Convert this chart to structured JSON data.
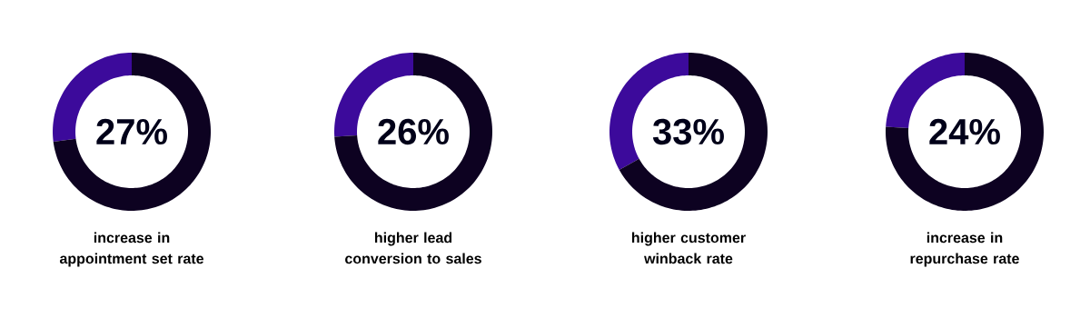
{
  "chart_data": [
    {
      "type": "donut",
      "title": "increase in appointment set rate",
      "categories": [
        null,
        null
      ],
      "values": [
        27,
        73
      ],
      "colors": [
        "#3c0a9b",
        "#0d0221"
      ],
      "annotations": [
        "27%"
      ]
    },
    {
      "type": "donut",
      "title": "higher lead conversion to sales",
      "categories": [
        null,
        null
      ],
      "values": [
        26,
        74
      ],
      "colors": [
        "#3c0a9b",
        "#0d0221"
      ],
      "annotations": [
        "26%"
      ]
    },
    {
      "type": "donut",
      "title": "higher customer winback rate",
      "categories": [
        null,
        null
      ],
      "values": [
        33,
        67
      ],
      "colors": [
        "#3c0a9b",
        "#0d0221"
      ],
      "annotations": [
        "33%"
      ]
    },
    {
      "type": "donut",
      "title": "increase in repurchase rate",
      "categories": [
        null,
        null
      ],
      "values": [
        24,
        76
      ],
      "colors": [
        "#3c0a9b",
        "#0d0221"
      ],
      "annotations": [
        "24%"
      ]
    }
  ]
}
